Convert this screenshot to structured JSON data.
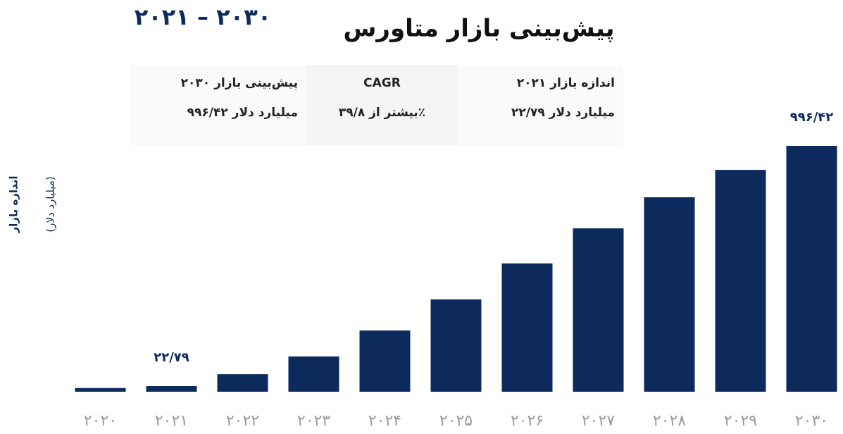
{
  "chart_data": {
    "type": "bar",
    "title": "پیش‌بینی بازار متاورس",
    "subtitle": "۲۰۲۱ – ۲۰۳۰",
    "y_label": [
      "اندازه بازار",
      "(میلیارد دلار)"
    ],
    "info_boxes": [
      [
        "اندازه بازار ۲۰۲۱",
        "۲۲/۷۹ میلیارد دلار"
      ],
      [
        "CAGR",
        "بیشتر از ۳۹/۸٪"
      ],
      [
        "پیش‌بینی بازار ۲۰۳۰",
        "۹۹۶/۴۲ میلیارد دلار"
      ]
    ],
    "categories": [
      "۲۰۲۰",
      "۲۰۲۱",
      "۲۰۲۲",
      "۲۰۲۳",
      "۲۰۲۴",
      "۲۰۲۵",
      "۲۰۲۶",
      "۲۰۲۷",
      "۲۰۲۸",
      "۲۰۲۹",
      "۲۰۳۰"
    ],
    "values": [
      15,
      22.79,
      71,
      143,
      248,
      374,
      520,
      662,
      788,
      899,
      996.42
    ],
    "value_labels": [
      null,
      "۲۲/۷۹",
      null,
      null,
      null,
      null,
      null,
      null,
      null,
      null,
      "۹۹۶/۴۲"
    ],
    "color": "#0d2a5c",
    "ylim": [
      0,
      1000
    ]
  }
}
